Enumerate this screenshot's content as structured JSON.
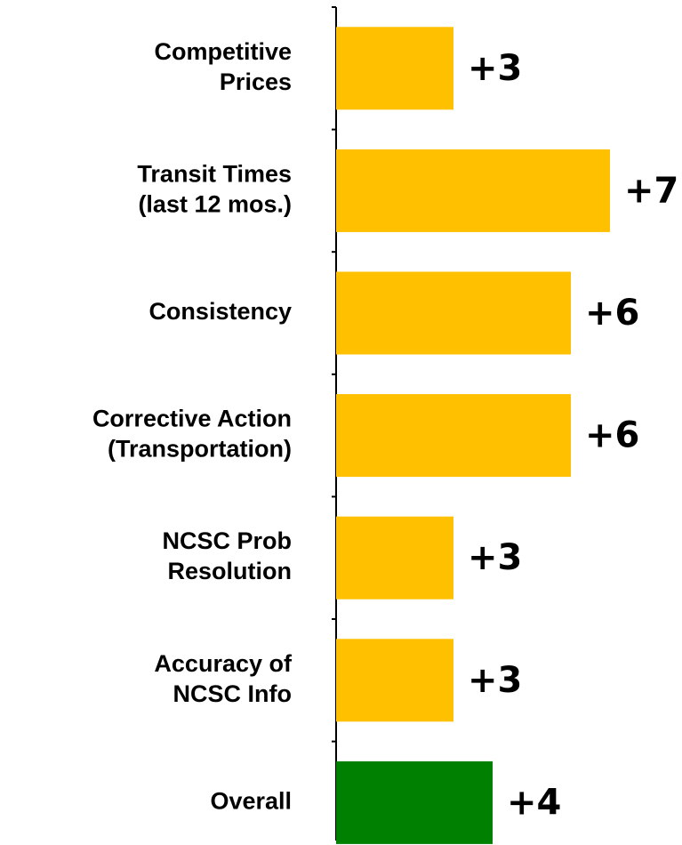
{
  "chart_data": {
    "type": "hbar",
    "categories": [
      "Competitive\nPrices",
      "Transit Times\n(last 12 mos.)",
      "Consistency",
      "Corrective Action\n(Transportation)",
      "NCSC Prob\nResolution",
      "Accuracy of\nNCSC Info",
      "Overall"
    ],
    "values": [
      3,
      7,
      6,
      6,
      3,
      3,
      4
    ],
    "value_labels": [
      "+3",
      "+7",
      "+6",
      "+6",
      "+3",
      "+3",
      "+4"
    ],
    "colors": [
      "#ffc000",
      "#ffc000",
      "#ffc000",
      "#ffc000",
      "#ffc000",
      "#ffc000",
      "#008000"
    ],
    "xlim": [
      0,
      8
    ]
  }
}
